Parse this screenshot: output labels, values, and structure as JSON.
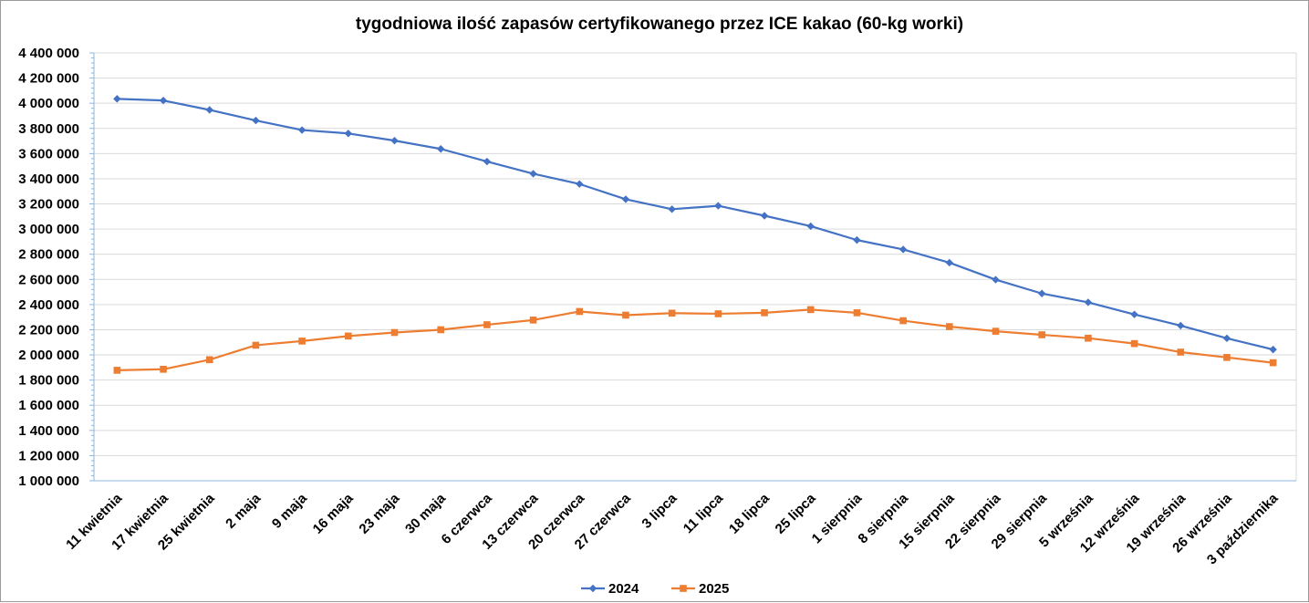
{
  "chart_data": {
    "type": "line",
    "title": "tygodniowa ilość zapasów certyfikowanego przez ICE kakao (60-kg worki)",
    "xlabel": "",
    "ylabel": "",
    "ylim": [
      1000000,
      4400000
    ],
    "y_ticks": [
      {
        "value": 4400000,
        "label": "4 400 000"
      },
      {
        "value": 4200000,
        "label": "4 200 000"
      },
      {
        "value": 4000000,
        "label": "4 000 000"
      },
      {
        "value": 3800000,
        "label": "3 800 000"
      },
      {
        "value": 3600000,
        "label": "3 600 000"
      },
      {
        "value": 3400000,
        "label": "3 400 000"
      },
      {
        "value": 3200000,
        "label": "3 200 000"
      },
      {
        "value": 3000000,
        "label": "3 000 000"
      },
      {
        "value": 2800000,
        "label": "2 800 000"
      },
      {
        "value": 2600000,
        "label": "2 600 000"
      },
      {
        "value": 2400000,
        "label": "2 400 000"
      },
      {
        "value": 2200000,
        "label": "2 200 000"
      },
      {
        "value": 2000000,
        "label": "2 000 000"
      },
      {
        "value": 1800000,
        "label": "1 800 000"
      },
      {
        "value": 1600000,
        "label": "1 600 000"
      },
      {
        "value": 1400000,
        "label": "1 400 000"
      },
      {
        "value": 1200000,
        "label": "1 200 000"
      },
      {
        "value": 1000000,
        "label": "1 000 000"
      }
    ],
    "categories": [
      "11 kwietnia",
      "17 kwietnia",
      "25 kwietnia",
      "2 maja",
      "9 maja",
      "16 maja",
      "23 maja",
      "30 maja",
      "6 czerwca",
      "13 czerwca",
      "20 czerwca",
      "27 czerwca",
      "3 lipca",
      "11 lipca",
      "18 lipca",
      "25 lipca",
      "1 sierpnia",
      "8 sierpnia",
      "15 sierpnia",
      "22 sierpnia",
      "29 sierpnia",
      "5 września",
      "12 września",
      "19 września",
      "26 września",
      "3 października"
    ],
    "series": [
      {
        "name": "2024",
        "color": "#4472c4",
        "marker": "diamond",
        "values": [
          4035000,
          4022000,
          3947000,
          3863000,
          3787000,
          3760000,
          3703000,
          3637000,
          3537000,
          3440000,
          3358000,
          3237000,
          3158000,
          3185000,
          3106000,
          3023000,
          2913000,
          2838000,
          2733000,
          2598000,
          2488000,
          2418000,
          2322000,
          2233000,
          2132000,
          2043000
        ]
      },
      {
        "name": "2025",
        "color": "#ed7d31",
        "marker": "square",
        "values": [
          1878000,
          1886000,
          1962000,
          2077000,
          2110000,
          2150000,
          2178000,
          2200000,
          2240000,
          2277000,
          2345000,
          2316000,
          2332000,
          2327000,
          2335000,
          2360000,
          2335000,
          2272000,
          2225000,
          2188000,
          2160000,
          2133000,
          2090000,
          2022000,
          1980000,
          1938000
        ]
      }
    ],
    "grid": true,
    "legend_position": "bottom"
  }
}
